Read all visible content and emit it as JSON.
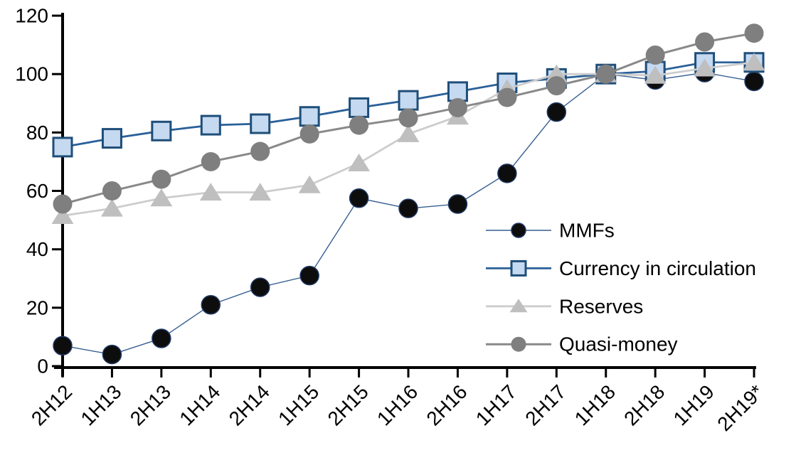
{
  "chart_data": {
    "type": "line",
    "title": "",
    "xlabel": "",
    "ylabel": "",
    "categories": [
      "2H12",
      "1H13",
      "2H13",
      "1H14",
      "2H14",
      "1H15",
      "2H15",
      "1H16",
      "2H16",
      "1H17",
      "2H17",
      "1H18",
      "2H18",
      "1H19",
      "2H19*"
    ],
    "series": [
      {
        "name": "MMFs",
        "marker": "circle",
        "values": [
          7,
          4,
          9.5,
          21,
          27,
          31,
          57.5,
          54,
          55.5,
          66,
          87,
          100,
          98,
          100.5,
          97.5
        ],
        "line_color": "#365f91",
        "line_width": 1.4,
        "marker_fill": "#0d0d0d",
        "marker_stroke": "#1f3864",
        "marker_stroke_width": 1.5,
        "marker_size": 26
      },
      {
        "name": "Currency in circulation",
        "marker": "square",
        "values": [
          75,
          78,
          80.5,
          82.5,
          83,
          85.5,
          88.5,
          91,
          94,
          97,
          98.5,
          100,
          101,
          104,
          104
        ],
        "line_color": "#2a6099",
        "line_width": 2.8,
        "marker_fill": "#c5d9f1",
        "marker_stroke": "#1f4e79",
        "marker_stroke_width": 3,
        "marker_size": 26
      },
      {
        "name": "Reserves",
        "marker": "triangle",
        "values": [
          51.5,
          54,
          57.5,
          59.5,
          59.5,
          62,
          69.5,
          79.5,
          85.5,
          95,
          100,
          100,
          99.5,
          102,
          104
        ],
        "line_color": "#cdcdcd",
        "line_width": 2.8,
        "marker_fill": "#bfbfbf",
        "marker_stroke": "none",
        "marker_stroke_width": 0,
        "marker_size": 27
      },
      {
        "name": "Quasi-money",
        "marker": "circle",
        "values": [
          55.5,
          60,
          64,
          70,
          73.5,
          79.5,
          82.5,
          85,
          88.5,
          92,
          96,
          100,
          106.5,
          111,
          114
        ],
        "line_color": "#898989",
        "line_width": 3,
        "marker_fill": "#7f7f7f",
        "marker_stroke": "none",
        "marker_stroke_width": 0,
        "marker_size": 27
      }
    ],
    "ylim": [
      0,
      120
    ],
    "yticks": [
      0,
      20,
      40,
      60,
      80,
      100,
      120
    ],
    "ytick_labels": [
      "0",
      "20",
      "40",
      "60",
      "80",
      "100",
      "120"
    ],
    "grid": false,
    "axis_color": "#000000",
    "legend_position": "inside-right",
    "legend_labels": [
      "MMFs",
      "Currency in circulation",
      "Reserves",
      "Quasi-money"
    ]
  }
}
